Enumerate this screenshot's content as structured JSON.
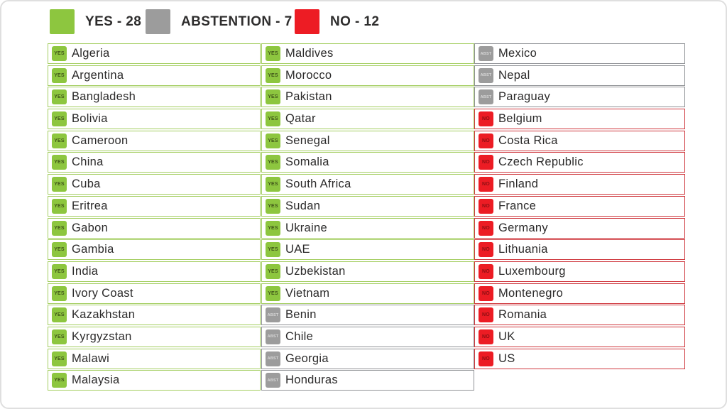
{
  "legend": {
    "items": [
      {
        "label": "YES - 28",
        "color": "#8dc63f",
        "status": "yes"
      },
      {
        "label": "ABSTENTION - 7",
        "color": "#9c9c9c",
        "status": "abst"
      },
      {
        "label": "NO - 12",
        "color": "#ed1c24",
        "status": "no"
      }
    ]
  },
  "badges": {
    "yes": "YES",
    "abst": "ABST",
    "no": "NO"
  },
  "colors": {
    "yes": "#8dc63f",
    "abstention": "#9c9c9c",
    "no": "#ec1c24",
    "yes_border": "#a4ce61",
    "abstention_border": "#909296",
    "no_border": "#cf383e",
    "text": "#2b2a2a"
  },
  "columns": [
    {
      "entries": [
        {
          "country": "Algeria",
          "vote": "yes"
        },
        {
          "country": "Argentina",
          "vote": "yes"
        },
        {
          "country": "Bangladesh",
          "vote": "yes"
        },
        {
          "country": "Bolivia",
          "vote": "yes"
        },
        {
          "country": "Cameroon",
          "vote": "yes"
        },
        {
          "country": "China",
          "vote": "yes"
        },
        {
          "country": "Cuba",
          "vote": "yes"
        },
        {
          "country": "Eritrea",
          "vote": "yes"
        },
        {
          "country": "Gabon",
          "vote": "yes"
        },
        {
          "country": "Gambia",
          "vote": "yes"
        },
        {
          "country": "India",
          "vote": "yes"
        },
        {
          "country": "Ivory Coast",
          "vote": "yes"
        },
        {
          "country": "Kazakhstan",
          "vote": "yes"
        },
        {
          "country": "Kyrgyzstan",
          "vote": "yes"
        },
        {
          "country": "Malawi",
          "vote": "yes"
        },
        {
          "country": "Malaysia",
          "vote": "yes"
        }
      ]
    },
    {
      "entries": [
        {
          "country": "Maldives",
          "vote": "yes"
        },
        {
          "country": "Morocco",
          "vote": "yes"
        },
        {
          "country": "Pakistan",
          "vote": "yes"
        },
        {
          "country": "Qatar",
          "vote": "yes"
        },
        {
          "country": "Senegal",
          "vote": "yes"
        },
        {
          "country": "Somalia",
          "vote": "yes"
        },
        {
          "country": "South Africa",
          "vote": "yes"
        },
        {
          "country": "Sudan",
          "vote": "yes"
        },
        {
          "country": "Ukraine",
          "vote": "yes"
        },
        {
          "country": "UAE",
          "vote": "yes"
        },
        {
          "country": "Uzbekistan",
          "vote": "yes"
        },
        {
          "country": "Vietnam",
          "vote": "yes"
        },
        {
          "country": "Benin",
          "vote": "abst"
        },
        {
          "country": "Chile",
          "vote": "abst"
        },
        {
          "country": "Georgia",
          "vote": "abst"
        },
        {
          "country": "Honduras",
          "vote": "abst"
        }
      ]
    },
    {
      "entries": [
        {
          "country": "Mexico",
          "vote": "abst"
        },
        {
          "country": "Nepal",
          "vote": "abst"
        },
        {
          "country": "Paraguay",
          "vote": "abst"
        },
        {
          "country": "Belgium",
          "vote": "no"
        },
        {
          "country": "Costa Rica",
          "vote": "no"
        },
        {
          "country": "Czech Republic",
          "vote": "no"
        },
        {
          "country": "Finland",
          "vote": "no"
        },
        {
          "country": "France",
          "vote": "no"
        },
        {
          "country": "Germany",
          "vote": "no"
        },
        {
          "country": "Lithuania",
          "vote": "no"
        },
        {
          "country": "Luxembourg",
          "vote": "no"
        },
        {
          "country": "Montenegro",
          "vote": "no"
        },
        {
          "country": "Romania",
          "vote": "no"
        },
        {
          "country": "UK",
          "vote": "no"
        },
        {
          "country": "US",
          "vote": "no"
        }
      ]
    }
  ],
  "chart_data": {
    "type": "table",
    "title": "Vote result tally",
    "legend": [
      "YES - 28",
      "ABSTENTION - 7",
      "NO - 12"
    ],
    "legend_position": "top",
    "totals": {
      "yes": 28,
      "abstention": 7,
      "no": 12
    },
    "votes": {
      "yes": [
        "Algeria",
        "Argentina",
        "Bangladesh",
        "Bolivia",
        "Cameroon",
        "China",
        "Cuba",
        "Eritrea",
        "Gabon",
        "Gambia",
        "India",
        "Ivory Coast",
        "Kazakhstan",
        "Kyrgyzstan",
        "Malawi",
        "Malaysia",
        "Maldives",
        "Morocco",
        "Pakistan",
        "Qatar",
        "Senegal",
        "Somalia",
        "South Africa",
        "Sudan",
        "Ukraine",
        "UAE",
        "Uzbekistan",
        "Vietnam"
      ],
      "abstention": [
        "Benin",
        "Chile",
        "Georgia",
        "Honduras",
        "Mexico",
        "Nepal",
        "Paraguay"
      ],
      "no": [
        "Belgium",
        "Costa Rica",
        "Czech Republic",
        "Finland",
        "France",
        "Germany",
        "Lithuania",
        "Luxembourg",
        "Montenegro",
        "Romania",
        "UK",
        "US"
      ]
    }
  }
}
